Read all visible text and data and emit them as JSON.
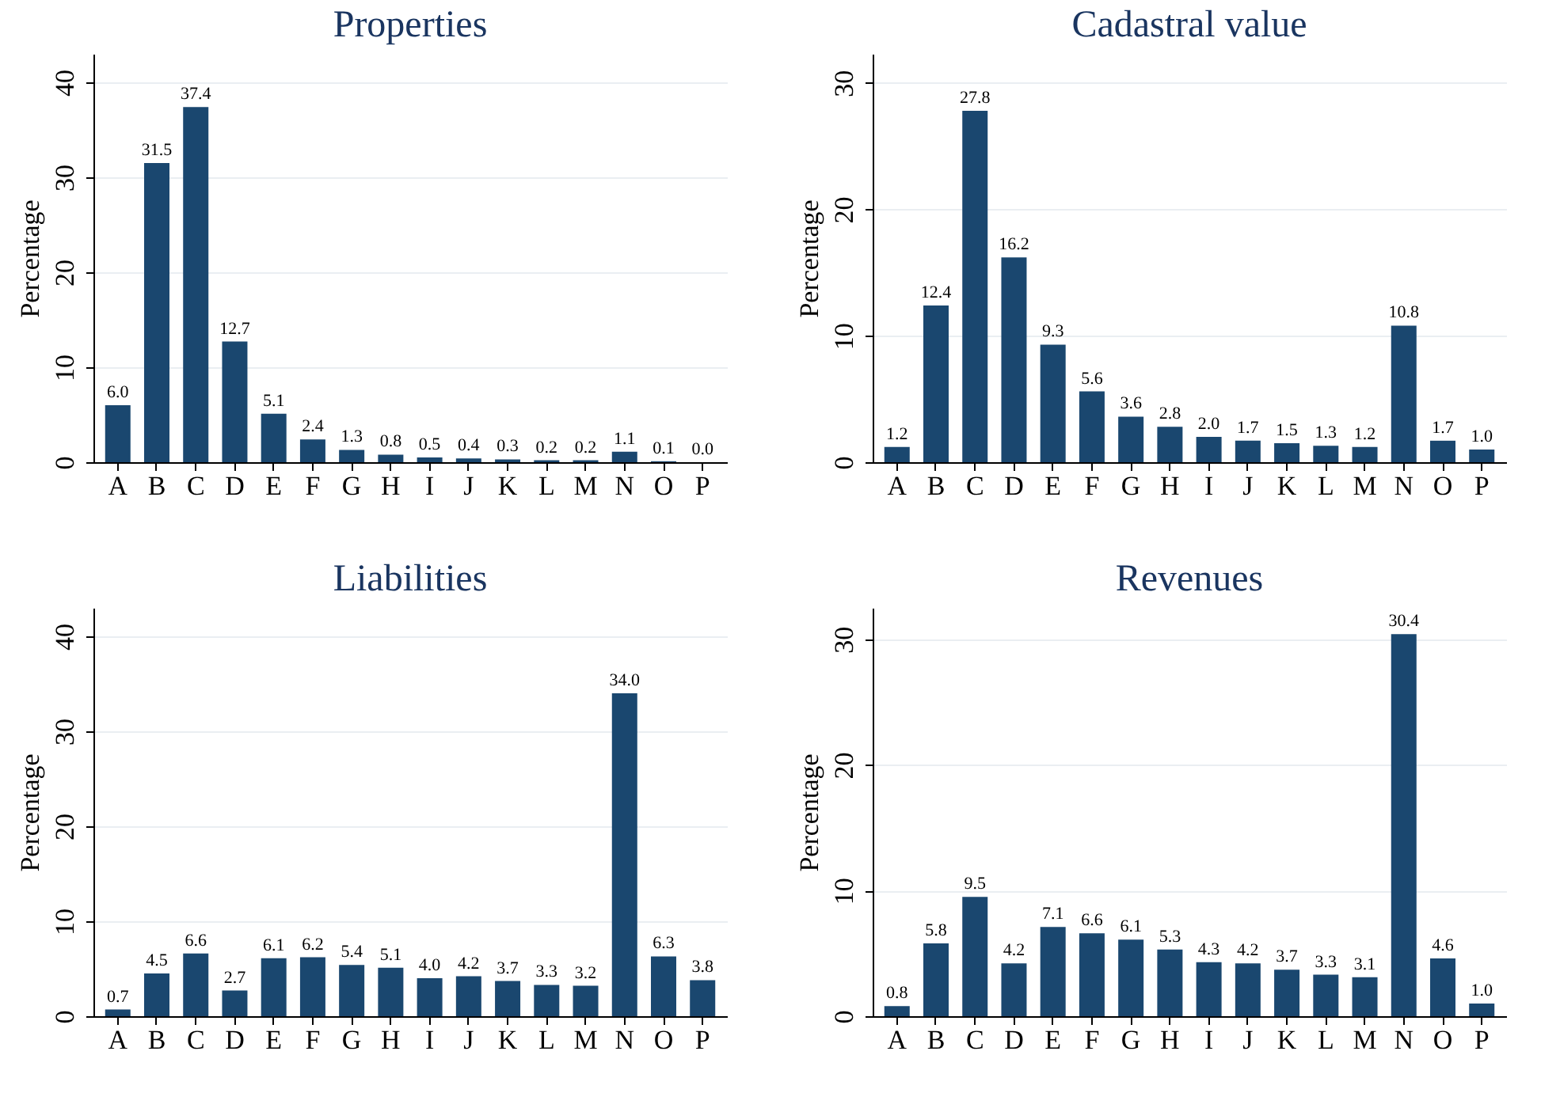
{
  "chart_data": [
    {
      "type": "bar",
      "title": "Properties",
      "ylabel": "Percentage",
      "categories": [
        "A",
        "B",
        "C",
        "D",
        "E",
        "F",
        "G",
        "H",
        "I",
        "J",
        "K",
        "L",
        "M",
        "N",
        "O",
        "P"
      ],
      "values": [
        6.0,
        31.5,
        37.4,
        12.7,
        5.1,
        2.4,
        1.3,
        0.8,
        0.5,
        0.4,
        0.3,
        0.2,
        0.2,
        1.1,
        0.1,
        0.0
      ],
      "value_labels": [
        "6.0",
        "31.5",
        "37.4",
        "12.7",
        "5.1",
        "2.4",
        "1.3",
        "0.8",
        "0.5",
        "0.4",
        "0.3",
        "0.2",
        "0.2",
        "1.1",
        "0.1",
        "0.0"
      ],
      "color": "#1a476f",
      "ylim": [
        0,
        43
      ],
      "yticks": [
        0,
        10,
        20,
        30,
        40
      ],
      "grid": "y"
    },
    {
      "type": "bar",
      "title": "Cadastral value",
      "ylabel": "Percentage",
      "categories": [
        "A",
        "B",
        "C",
        "D",
        "E",
        "F",
        "G",
        "H",
        "I",
        "J",
        "K",
        "L",
        "M",
        "N",
        "O",
        "P"
      ],
      "values": [
        1.2,
        12.4,
        27.8,
        16.2,
        9.3,
        5.6,
        3.6,
        2.8,
        2.0,
        1.7,
        1.5,
        1.3,
        1.2,
        10.8,
        1.7,
        1.0
      ],
      "value_labels": [
        "1.2",
        "12.4",
        "27.8",
        "16.2",
        "9.3",
        "5.6",
        "3.6",
        "2.8",
        "2.0",
        "1.7",
        "1.5",
        "1.3",
        "1.2",
        "10.8",
        "1.7",
        "1.0"
      ],
      "color": "#1a476f",
      "ylim": [
        0,
        32.3
      ],
      "yticks": [
        0,
        10,
        20,
        30
      ],
      "grid": "y"
    },
    {
      "type": "bar",
      "title": "Liabilities",
      "ylabel": "Percentage",
      "categories": [
        "A",
        "B",
        "C",
        "D",
        "E",
        "F",
        "G",
        "H",
        "I",
        "J",
        "K",
        "L",
        "M",
        "N",
        "O",
        "P"
      ],
      "values": [
        0.7,
        4.5,
        6.6,
        2.7,
        6.1,
        6.2,
        5.4,
        5.1,
        4.0,
        4.2,
        3.7,
        3.3,
        3.2,
        34.0,
        6.3,
        3.8
      ],
      "value_labels": [
        "0.7",
        "4.5",
        "6.6",
        "2.7",
        "6.1",
        "6.2",
        "5.4",
        "5.1",
        "4.0",
        "4.2",
        "3.7",
        "3.3",
        "3.2",
        "34.0",
        "6.3",
        "3.8"
      ],
      "color": "#1a476f",
      "ylim": [
        0,
        43
      ],
      "yticks": [
        0,
        10,
        20,
        30,
        40
      ],
      "grid": "y"
    },
    {
      "type": "bar",
      "title": "Revenues",
      "ylabel": "Percentage",
      "categories": [
        "A",
        "B",
        "C",
        "D",
        "E",
        "F",
        "G",
        "H",
        "I",
        "J",
        "K",
        "L",
        "M",
        "N",
        "O",
        "P"
      ],
      "values": [
        0.8,
        5.8,
        9.5,
        4.2,
        7.1,
        6.6,
        6.1,
        5.3,
        4.3,
        4.2,
        3.7,
        3.3,
        3.1,
        30.4,
        4.6,
        1.0
      ],
      "value_labels": [
        "0.8",
        "5.8",
        "9.5",
        "4.2",
        "7.1",
        "6.6",
        "6.1",
        "5.3",
        "4.3",
        "4.2",
        "3.7",
        "3.3",
        "3.1",
        "30.4",
        "4.6",
        "1.0"
      ],
      "color": "#1a476f",
      "ylim": [
        0,
        32.5
      ],
      "yticks": [
        0,
        10,
        20,
        30
      ],
      "grid": "y"
    }
  ]
}
